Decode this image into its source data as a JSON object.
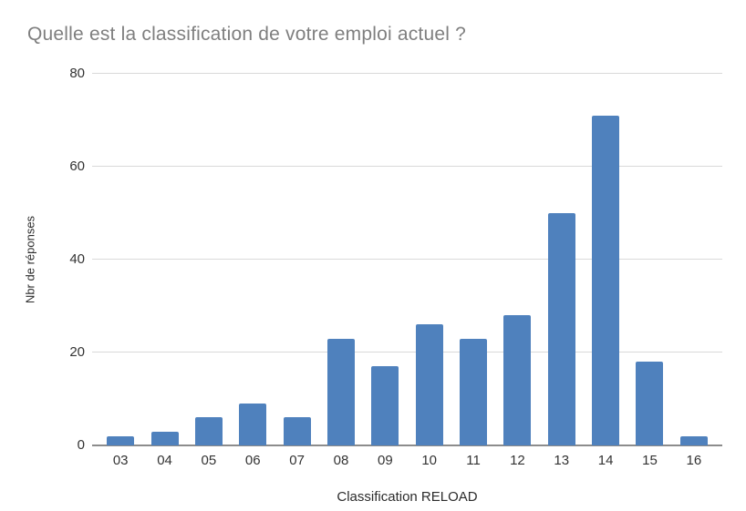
{
  "chart_data": {
    "type": "bar",
    "title": "Quelle est la classification de votre emploi actuel ?",
    "categories": [
      "03",
      "04",
      "05",
      "06",
      "07",
      "08",
      "09",
      "10",
      "11",
      "12",
      "13",
      "14",
      "15",
      "16"
    ],
    "values": [
      2,
      3,
      6,
      9,
      6,
      23,
      17,
      26,
      23,
      28,
      50,
      71,
      18,
      2
    ],
    "xlabel": "Classification RELOAD",
    "ylabel": "Nbr de réponses",
    "ylim": [
      0,
      80
    ],
    "yticks": [
      0,
      20,
      40,
      60,
      80
    ],
    "grid": true,
    "legend_position": "none",
    "bar_color": "#4F81BD",
    "gridline_color": "#D9D9D9",
    "axis_line_color": "#8C8C8C",
    "title_color": "#7F7F7F",
    "tick_label_color": "#333333"
  }
}
